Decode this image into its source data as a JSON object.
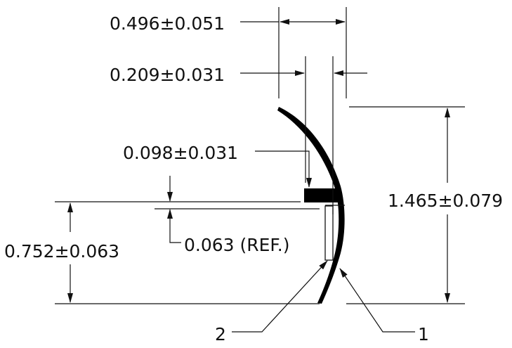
{
  "dimensions": {
    "overall_width": "0.496±0.051",
    "inner_width": "0.209±0.031",
    "flange_thickness": "0.098±0.031",
    "overall_height": "1.465±0.079",
    "flange_height": "0.752±0.063",
    "reference_gap": "0.063 (REF.)"
  },
  "callouts": {
    "item_1": "1",
    "item_2": "2"
  },
  "colors": {
    "line": "#111111",
    "profile": "#000000",
    "background": "#ffffff"
  }
}
